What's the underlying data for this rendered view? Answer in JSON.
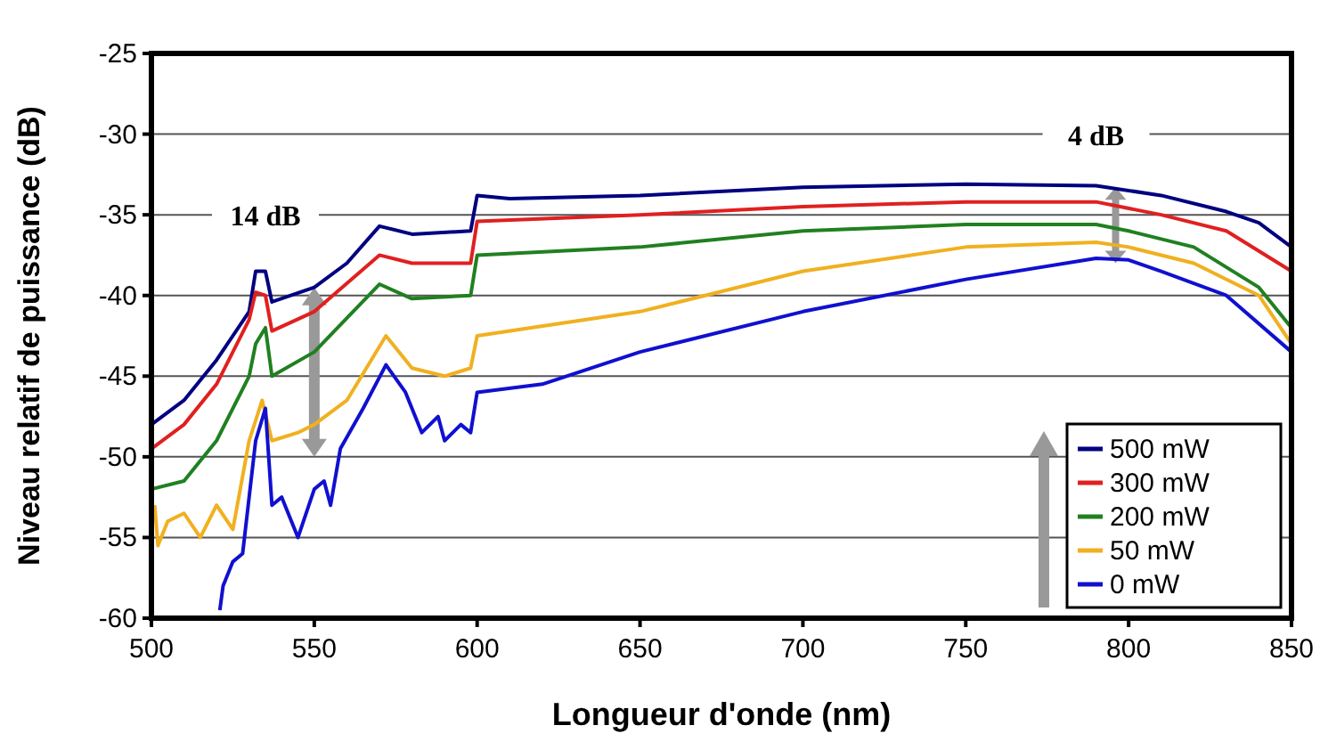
{
  "chart_data": {
    "type": "line",
    "xlabel": "Longueur d'onde (nm)",
    "ylabel": "Niveau relatif de puissance (dB)",
    "xlim": [
      500,
      850
    ],
    "xticks": [
      500,
      550,
      600,
      650,
      700,
      750,
      800,
      850
    ],
    "ylim": [
      -60,
      -25
    ],
    "yticks": [
      -60,
      -55,
      -50,
      -45,
      -40,
      -35,
      -30,
      -25
    ],
    "grid": "y",
    "legend": "bottom right",
    "line_style": "solid",
    "marker": "none",
    "annotations": [
      "14 dB",
      "4 dB"
    ],
    "series": [
      {
        "name": "500 mW",
        "color": "#000080",
        "x": [
          500,
          510,
          520,
          530,
          532,
          535,
          537,
          550,
          560,
          570,
          580,
          598,
          600,
          610,
          650,
          700,
          750,
          790,
          810,
          830,
          840,
          850
        ],
        "values": [
          -48,
          -46.5,
          -44,
          -41,
          -38.5,
          -38.5,
          -40.4,
          -39.5,
          -38,
          -35.7,
          -36.2,
          -36,
          -33.8,
          -34,
          -33.8,
          -33.3,
          -33.1,
          -33.2,
          -33.8,
          -34.8,
          -35.5,
          -37
        ]
      },
      {
        "name": "300 mW",
        "color": "#e02020",
        "x": [
          500,
          510,
          520,
          530,
          532,
          535,
          537,
          550,
          570,
          580,
          598,
          600,
          650,
          700,
          750,
          790,
          810,
          830,
          850
        ],
        "values": [
          -49.5,
          -48,
          -45.5,
          -41.5,
          -39.8,
          -40,
          -42.2,
          -41,
          -37.5,
          -38,
          -38,
          -35.4,
          -35,
          -34.5,
          -34.2,
          -34.2,
          -35,
          -36,
          -38.5
        ]
      },
      {
        "name": "200 mW",
        "color": "#208020",
        "x": [
          500,
          510,
          520,
          530,
          532,
          535,
          537,
          550,
          570,
          580,
          598,
          600,
          650,
          700,
          750,
          790,
          800,
          820,
          840,
          850
        ],
        "values": [
          -52,
          -51.5,
          -49,
          -45,
          -43,
          -42,
          -45,
          -43.5,
          -39.3,
          -40.2,
          -40,
          -37.5,
          -37,
          -36,
          -35.6,
          -35.6,
          -36,
          -37,
          -39.5,
          -42
        ]
      },
      {
        "name": "50 mW",
        "color": "#f0b020",
        "x": [
          501,
          502,
          505,
          510,
          515,
          520,
          525,
          530,
          534,
          537,
          545,
          550,
          560,
          572,
          580,
          590,
          598,
          600,
          650,
          700,
          750,
          790,
          800,
          820,
          840,
          850
        ],
        "values": [
          -53,
          -55.5,
          -54,
          -53.5,
          -55,
          -53,
          -54.5,
          -49,
          -46.5,
          -49,
          -48.5,
          -48,
          -46.5,
          -42.5,
          -44.5,
          -45,
          -44.5,
          -42.5,
          -41,
          -38.5,
          -37,
          -36.7,
          -37,
          -38,
          -40,
          -43
        ]
      },
      {
        "name": "0 mW",
        "color": "#1010d0",
        "x": [
          521,
          522,
          525,
          528,
          532,
          535,
          537,
          540,
          545,
          550,
          553,
          555,
          558,
          565,
          572,
          578,
          583,
          588,
          590,
          595,
          598,
          600,
          620,
          650,
          700,
          750,
          790,
          800,
          810,
          830,
          850
        ],
        "values": [
          -59.5,
          -58,
          -56.5,
          -56,
          -49,
          -47,
          -53,
          -52.5,
          -55,
          -52,
          -51.5,
          -53,
          -49.5,
          -47,
          -44.3,
          -46,
          -48.5,
          -47.5,
          -49,
          -48,
          -48.5,
          -46,
          -45.5,
          -43.5,
          -41,
          -39,
          -37.7,
          -37.8,
          -38.5,
          -40,
          -43.5
        ]
      }
    ]
  }
}
